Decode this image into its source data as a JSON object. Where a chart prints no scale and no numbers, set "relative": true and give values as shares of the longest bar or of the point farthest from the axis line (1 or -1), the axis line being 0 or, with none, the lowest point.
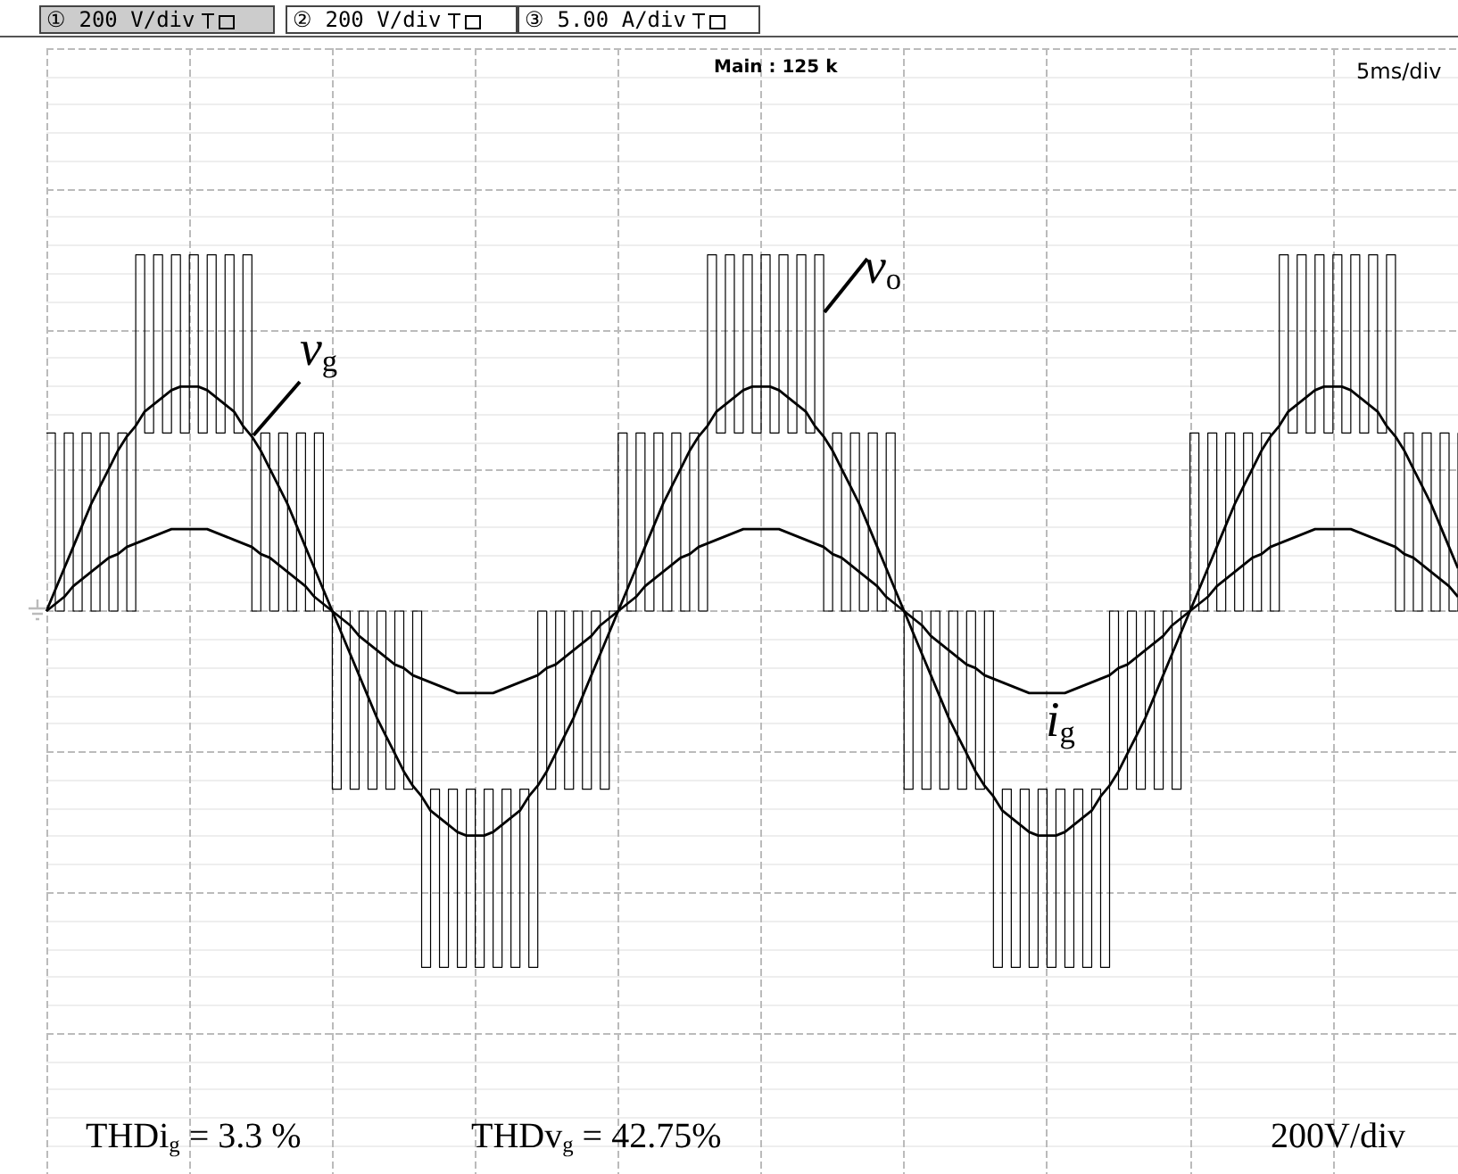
{
  "chart_data": {
    "type": "line",
    "relative": true,
    "grid": true,
    "tick_labels": false,
    "line_style": "solid",
    "categories": [
      null,
      null,
      null,
      null,
      null,
      null,
      null,
      null,
      null,
      null,
      null,
      null,
      null,
      null,
      null,
      null,
      null,
      null,
      null,
      null,
      null,
      null,
      null,
      null,
      null,
      null,
      null,
      null,
      null,
      null,
      null,
      null,
      null,
      null,
      null,
      null,
      null,
      null,
      null,
      null,
      null,
      null,
      null,
      null,
      null,
      null,
      null,
      null,
      null,
      null,
      null,
      null,
      null,
      null,
      null,
      null,
      null,
      null,
      null,
      null,
      null,
      null,
      null,
      null,
      null,
      null,
      null,
      null,
      null,
      null,
      null,
      null,
      null,
      null,
      null,
      null,
      null,
      null,
      null,
      null,
      null,
      null,
      null,
      null,
      null,
      null,
      null,
      null,
      null,
      null,
      null,
      null,
      null,
      null,
      null,
      null,
      null,
      null,
      null,
      null,
      null,
      null,
      null,
      null,
      null,
      null,
      null,
      null,
      null,
      null,
      null,
      null,
      null,
      null,
      null,
      null,
      null,
      null,
      null,
      null,
      null,
      null,
      null,
      null,
      null,
      null,
      null,
      null,
      null,
      null,
      null,
      null,
      null,
      null,
      null,
      null,
      null,
      null,
      null,
      null,
      null,
      null,
      null,
      null,
      null,
      null,
      null,
      null,
      null,
      null,
      null,
      null,
      null,
      null,
      null,
      null,
      null,
      null,
      null
    ],
    "series": [
      {
        "name": "v$_{o}$",
        "type": "step",
        "color": "#000000",
        "values": [
          0.5,
          0,
          0.5,
          0,
          0.5,
          0,
          0.5,
          0,
          0.5,
          0,
          1,
          0.5,
          1,
          0.5,
          1,
          0.5,
          1,
          0.5,
          1,
          0.5,
          1,
          0.5,
          1,
          0,
          0.5,
          0,
          0.5,
          0,
          0.5,
          0,
          0.5,
          0,
          -0.5,
          0,
          -0.5,
          0,
          -0.5,
          0,
          -0.5,
          0,
          -0.5,
          0,
          -1,
          -0.5,
          -1,
          -0.5,
          -1,
          -0.5,
          -1,
          -0.5,
          -1,
          -0.5,
          -1,
          -0.5,
          -1,
          0,
          -0.5,
          0,
          -0.5,
          0,
          -0.5,
          0,
          -0.5,
          0,
          0.5,
          0,
          0.5,
          0,
          0.5,
          0,
          0.5,
          0,
          0.5,
          0,
          1,
          0.5,
          1,
          0.5,
          1,
          0.5,
          1,
          0.5,
          1,
          0.5,
          1,
          0.5,
          1,
          0,
          0.5,
          0,
          0.5,
          0,
          0.5,
          0,
          0.5,
          0,
          -0.5,
          0,
          -0.5,
          0,
          -0.5,
          0,
          -0.5,
          0,
          -0.5,
          0,
          -1,
          -0.5,
          -1,
          -0.5,
          -1,
          -0.5,
          -1,
          -0.5,
          -1,
          -0.5,
          -1,
          -0.5,
          -1,
          0,
          -0.5,
          0,
          -0.5,
          0,
          -0.5,
          0,
          -0.5,
          0,
          0.5,
          0,
          0.5,
          0,
          0.5,
          0,
          0.5,
          0,
          0.5,
          0,
          1,
          0.5,
          1,
          0.5,
          1,
          0.5,
          1,
          0.5,
          1,
          0.5,
          1,
          0.5,
          1,
          0,
          0.5,
          0,
          0.5,
          0,
          0.5,
          0,
          0.5
        ]
      },
      {
        "name": "v$_{g}$",
        "color": "#000000",
        "values": [
          0,
          0.06,
          0.12,
          0.18,
          0.24,
          0.3,
          0.35,
          0.4,
          0.45,
          0.49,
          0.52,
          0.56,
          0.58,
          0.6,
          0.62,
          0.63,
          0.63,
          0.63,
          0.62,
          0.6,
          0.58,
          0.56,
          0.52,
          0.49,
          0.45,
          0.4,
          0.35,
          0.3,
          0.24,
          0.18,
          0.12,
          0.06,
          0,
          -0.06,
          -0.12,
          -0.18,
          -0.24,
          -0.3,
          -0.35,
          -0.4,
          -0.45,
          -0.49,
          -0.52,
          -0.56,
          -0.58,
          -0.6,
          -0.62,
          -0.63,
          -0.63,
          -0.63,
          -0.62,
          -0.6,
          -0.58,
          -0.56,
          -0.52,
          -0.49,
          -0.45,
          -0.4,
          -0.35,
          -0.3,
          -0.24,
          -0.18,
          -0.12,
          -0.06,
          0,
          0.06,
          0.12,
          0.18,
          0.24,
          0.3,
          0.35,
          0.4,
          0.45,
          0.49,
          0.52,
          0.56,
          0.58,
          0.6,
          0.62,
          0.63,
          0.63,
          0.63,
          0.62,
          0.6,
          0.58,
          0.56,
          0.52,
          0.49,
          0.45,
          0.4,
          0.35,
          0.3,
          0.24,
          0.18,
          0.12,
          0.06,
          0,
          -0.06,
          -0.12,
          -0.18,
          -0.24,
          -0.3,
          -0.35,
          -0.4,
          -0.45,
          -0.49,
          -0.52,
          -0.56,
          -0.58,
          -0.6,
          -0.62,
          -0.63,
          -0.63,
          -0.63,
          -0.62,
          -0.6,
          -0.58,
          -0.56,
          -0.52,
          -0.49,
          -0.45,
          -0.4,
          -0.35,
          -0.3,
          -0.24,
          -0.18,
          -0.12,
          -0.06,
          0,
          0.06,
          0.12,
          0.18,
          0.24,
          0.3,
          0.35,
          0.4,
          0.45,
          0.49,
          0.52,
          0.56,
          0.58,
          0.6,
          0.62,
          0.63,
          0.63,
          0.63,
          0.62,
          0.6,
          0.58,
          0.56,
          0.52,
          0.49,
          0.45,
          0.4,
          0.35,
          0.3,
          0.24,
          0.18,
          0.12
        ]
      },
      {
        "name": "i$_{g}$",
        "color": "#000000",
        "values": [
          0,
          0.02,
          0.04,
          0.07,
          0.09,
          0.11,
          0.13,
          0.15,
          0.16,
          0.18,
          0.19,
          0.2,
          0.21,
          0.22,
          0.23,
          0.23,
          0.23,
          0.23,
          0.23,
          0.22,
          0.21,
          0.2,
          0.19,
          0.18,
          0.16,
          0.15,
          0.13,
          0.11,
          0.09,
          0.07,
          0.04,
          0.02,
          0,
          -0.02,
          -0.04,
          -0.07,
          -0.09,
          -0.11,
          -0.13,
          -0.15,
          -0.16,
          -0.18,
          -0.19,
          -0.2,
          -0.21,
          -0.22,
          -0.23,
          -0.23,
          -0.23,
          -0.23,
          -0.23,
          -0.22,
          -0.21,
          -0.2,
          -0.19,
          -0.18,
          -0.16,
          -0.15,
          -0.13,
          -0.11,
          -0.09,
          -0.07,
          -0.04,
          -0.02,
          0,
          0.02,
          0.04,
          0.07,
          0.09,
          0.11,
          0.13,
          0.15,
          0.16,
          0.18,
          0.19,
          0.2,
          0.21,
          0.22,
          0.23,
          0.23,
          0.23,
          0.23,
          0.23,
          0.22,
          0.21,
          0.2,
          0.19,
          0.18,
          0.16,
          0.15,
          0.13,
          0.11,
          0.09,
          0.07,
          0.04,
          0.02,
          0,
          -0.02,
          -0.04,
          -0.07,
          -0.09,
          -0.11,
          -0.13,
          -0.15,
          -0.16,
          -0.18,
          -0.19,
          -0.2,
          -0.21,
          -0.22,
          -0.23,
          -0.23,
          -0.23,
          -0.23,
          -0.23,
          -0.22,
          -0.21,
          -0.2,
          -0.19,
          -0.18,
          -0.16,
          -0.15,
          -0.13,
          -0.11,
          -0.09,
          -0.07,
          -0.04,
          -0.02,
          0,
          0.02,
          0.04,
          0.07,
          0.09,
          0.11,
          0.13,
          0.15,
          0.16,
          0.18,
          0.19,
          0.2,
          0.21,
          0.22,
          0.23,
          0.23,
          0.23,
          0.23,
          0.23,
          0.22,
          0.21,
          0.2,
          0.19,
          0.18,
          0.16,
          0.15,
          0.13,
          0.11,
          0.09,
          0.07,
          0.04
        ]
      }
    ],
    "annotations": [
      "① 200 V/div",
      "② 200 V/div",
      "③ 5.00 A/div",
      "Main : 125 k",
      "5ms/div",
      "THDi$_{g}$ = 3.3 %",
      "THDv$_{g}$ = 42.75%",
      "200V/div"
    ]
  }
}
